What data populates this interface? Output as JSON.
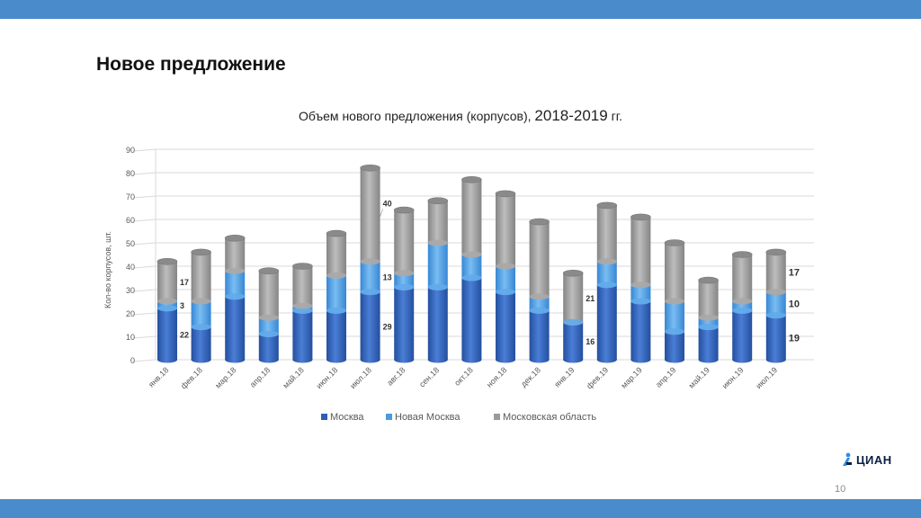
{
  "slide": {
    "title": "Новое предложение",
    "page_number": "10",
    "logo_text": "ЦИАН"
  },
  "colors": {
    "band": "#4a8ccb",
    "moscow": "#2f5fb3",
    "new_moscow": "#4b9ae0",
    "region": "#9a9a9a"
  },
  "chart_data": {
    "type": "bar",
    "stacked": true,
    "title_main": "Объем нового предложения  (корпусов), ",
    "title_years": "2018-2019",
    "title_suffix": " гг.",
    "ylabel": "Кол-во корпусов, шт.",
    "xlabel": "",
    "ylim": [
      0,
      90
    ],
    "yticks": [
      0,
      10,
      20,
      30,
      40,
      50,
      60,
      70,
      80,
      90
    ],
    "grid": true,
    "legend_position": "bottom",
    "categories": [
      "янв.18",
      "фев.18",
      "мар.18",
      "апр.18",
      "май.18",
      "июн.18",
      "июл.18",
      "авг.18",
      "сен.18",
      "окт.18",
      "ноя.18",
      "дек.18",
      "янв.19",
      "фев.19",
      "мар.19",
      "апр.19",
      "май.19",
      "июн.19",
      "июл.19"
    ],
    "series": [
      {
        "name": "Москва",
        "values": [
          22,
          14,
          27,
          11,
          21,
          21,
          29,
          31,
          31,
          35,
          29,
          21,
          16,
          32,
          25,
          12,
          14,
          21,
          19
        ]
      },
      {
        "name": "Новая Москва",
        "values": [
          3,
          11,
          11,
          7,
          2,
          15,
          13,
          6,
          19,
          10,
          11,
          6,
          0,
          10,
          7,
          13,
          4,
          4,
          10
        ]
      },
      {
        "name": "Московская область",
        "values": [
          17,
          21,
          14,
          20,
          17,
          18,
          40,
          27,
          18,
          32,
          31,
          32,
          21,
          24,
          29,
          25,
          16,
          20,
          17
        ]
      }
    ],
    "data_labels": [
      {
        "category": "янв.18",
        "series": "Москва",
        "text": "22"
      },
      {
        "category": "янв.18",
        "series": "Новая Москва",
        "text": "3"
      },
      {
        "category": "янв.18",
        "series": "Московская область",
        "text": "17"
      },
      {
        "category": "июл.18",
        "series": "Москва",
        "text": "29"
      },
      {
        "category": "июл.18",
        "series": "Новая Москва",
        "text": "13"
      },
      {
        "category": "июл.18",
        "series": "Московская область",
        "text": "40"
      },
      {
        "category": "янв.19",
        "series": "Москва",
        "text": "16"
      },
      {
        "category": "янв.19",
        "series": "Московская область",
        "text": "21"
      },
      {
        "category": "июл.19",
        "series": "Москва",
        "text": "19"
      },
      {
        "category": "июл.19",
        "series": "Новая Москва",
        "text": "10"
      },
      {
        "category": "июл.19",
        "series": "Московская область",
        "text": "17"
      }
    ]
  }
}
